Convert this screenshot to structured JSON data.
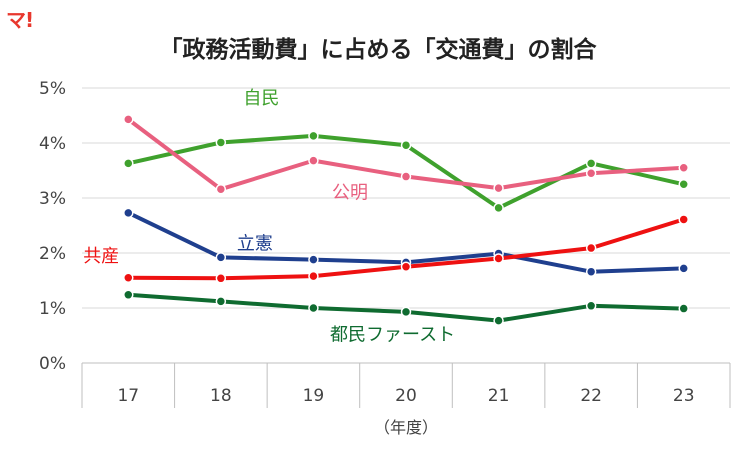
{
  "logo": "マ!",
  "chart_data": {
    "type": "line",
    "title": "「政務活動費」に占める「交通費」の割合",
    "xlabel": "（年度）",
    "ylabel": "",
    "x": [
      "17",
      "18",
      "19",
      "20",
      "21",
      "22",
      "23"
    ],
    "ylim": [
      0,
      5
    ],
    "yticks": [
      "0%",
      "1%",
      "2%",
      "3%",
      "4%",
      "5%"
    ],
    "grid": "horizontal",
    "legend": "inline-labels",
    "series": [
      {
        "name": "自民",
        "color": "#3fa12d",
        "values": [
          3.63,
          4.01,
          4.13,
          3.96,
          2.82,
          3.63,
          3.25
        ]
      },
      {
        "name": "公明",
        "color": "#e8607f",
        "values": [
          4.43,
          3.16,
          3.68,
          3.39,
          3.18,
          3.45,
          3.55
        ]
      },
      {
        "name": "立憲",
        "color": "#1f3f8e",
        "values": [
          2.73,
          1.92,
          1.88,
          1.83,
          1.99,
          1.66,
          1.72
        ]
      },
      {
        "name": "共産",
        "color": "#ee1111",
        "values": [
          1.55,
          1.54,
          1.58,
          1.75,
          1.9,
          2.09,
          2.61
        ]
      },
      {
        "name": "都民ファースト",
        "color": "#0f6b30",
        "values": [
          1.24,
          1.12,
          1.0,
          0.93,
          0.77,
          1.04,
          0.99
        ]
      }
    ]
  }
}
